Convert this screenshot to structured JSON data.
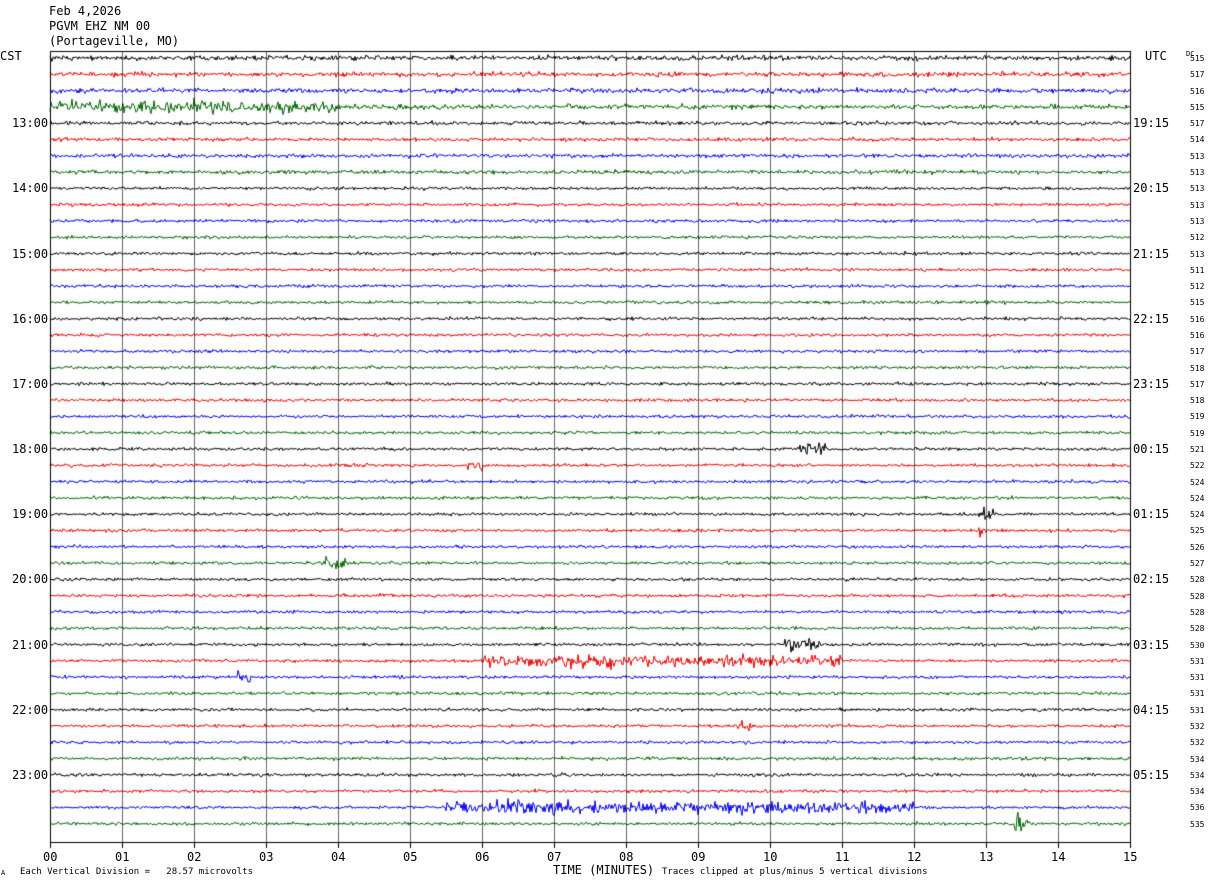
{
  "header": {
    "date": "Feb 4,2026",
    "station": "PGVM EHZ NM 00",
    "location": "(Portageville, MO)"
  },
  "left_label": "CST",
  "right_label": "UTC",
  "dc_label": "DC",
  "footer": {
    "scale_note": "Each Vertical Division =   28.57 microvolts",
    "x_axis_title": "TIME (MINUTES)",
    "clip_note": "Traces clipped at plus/minus 5 vertical divisions",
    "corner_mark": "A"
  },
  "chart_data": {
    "type": "line",
    "subtype": "helicorder",
    "trace_colors": [
      "#000000",
      "#ee0000",
      "#0000ee",
      "#006400"
    ],
    "x_ticks": [
      "00",
      "01",
      "02",
      "03",
      "04",
      "05",
      "06",
      "07",
      "08",
      "09",
      "10",
      "11",
      "12",
      "13",
      "14",
      "15"
    ],
    "xlim": [
      0,
      15
    ],
    "left_hour_labels": [
      "13:00",
      "14:00",
      "15:00",
      "16:00",
      "17:00",
      "18:00",
      "19:00",
      "20:00",
      "21:00",
      "22:00",
      "23:00"
    ],
    "right_hour_labels": [
      "19:15",
      "20:15",
      "21:15",
      "22:15",
      "23:15",
      "00:15",
      "01:15",
      "02:15",
      "03:15",
      "04:15",
      "05:15"
    ],
    "dc_offsets": [
      "515",
      "517",
      "516",
      "515",
      "517",
      "514",
      "513",
      "513",
      "513",
      "513",
      "513",
      "512",
      "513",
      "511",
      "512",
      "515",
      "516",
      "516",
      "517",
      "518",
      "517",
      "518",
      "519",
      "519",
      "521",
      "522",
      "524",
      "524",
      "524",
      "525",
      "526",
      "527",
      "528",
      "528",
      "528",
      "528",
      "530",
      "531",
      "531",
      "531",
      "531",
      "532",
      "532",
      "534",
      "534",
      "534",
      "536",
      "535"
    ],
    "traces_count": 48,
    "minutes_per_trace": 15,
    "grid": true
  }
}
